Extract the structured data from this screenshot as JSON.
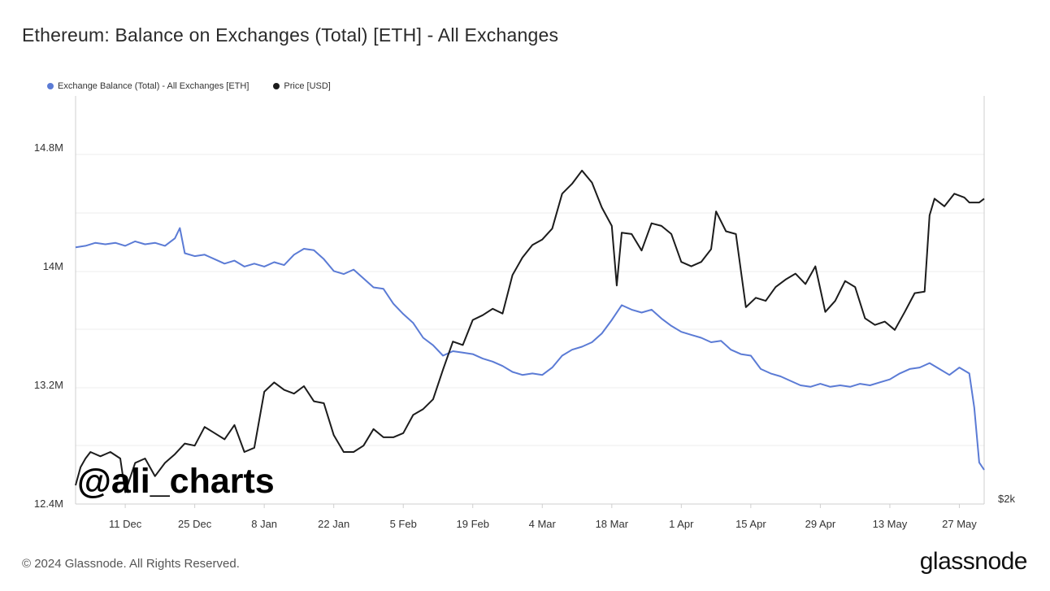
{
  "title": "Ethereum: Balance on Exchanges (Total) [ETH] - All Exchanges",
  "footer": "© 2024 Glassnode. All Rights Reserved.",
  "brand": "glassnode",
  "watermark": "@ali_charts",
  "colors": {
    "balance": "#5b7bd5",
    "price": "#1c1c1c",
    "grid": "#ececec",
    "axis": "#cfcfcf"
  },
  "chart_data": {
    "type": "line",
    "title": "Ethereum: Balance on Exchanges (Total) [ETH] - All Exchanges",
    "legend_position": "top-left",
    "grid": true,
    "x_tick_labels": [
      "11 Dec",
      "25 Dec",
      "8 Jan",
      "22 Jan",
      "5 Feb",
      "19 Feb",
      "4 Mar",
      "18 Mar",
      "1 Apr",
      "15 Apr",
      "29 Apr",
      "13 May",
      "27 May"
    ],
    "y_left": {
      "ticks": [
        "12.4M",
        "13.2M",
        "14M",
        "14.8M"
      ],
      "ylim": [
        12.4,
        15.15
      ],
      "unit": "M ETH"
    },
    "y_right": {
      "ticks": [
        "$2k"
      ]
    },
    "x_range": [
      "2023-12-01",
      "2024-06-01"
    ],
    "series": [
      {
        "name": "Exchange Balance (Total) - All Exchanges [ETH]",
        "axis": "left",
        "points": [
          [
            "2023-12-01",
            14.13
          ],
          [
            "2023-12-03",
            14.14
          ],
          [
            "2023-12-05",
            14.16
          ],
          [
            "2023-12-07",
            14.15
          ],
          [
            "2023-12-09",
            14.16
          ],
          [
            "2023-12-11",
            14.14
          ],
          [
            "2023-12-13",
            14.17
          ],
          [
            "2023-12-15",
            14.15
          ],
          [
            "2023-12-17",
            14.16
          ],
          [
            "2023-12-19",
            14.14
          ],
          [
            "2023-12-21",
            14.19
          ],
          [
            "2023-12-22",
            14.26
          ],
          [
            "2023-12-23",
            14.09
          ],
          [
            "2023-12-25",
            14.07
          ],
          [
            "2023-12-27",
            14.08
          ],
          [
            "2023-12-29",
            14.05
          ],
          [
            "2023-12-31",
            14.02
          ],
          [
            "2024-01-02",
            14.04
          ],
          [
            "2024-01-04",
            14.0
          ],
          [
            "2024-01-06",
            14.02
          ],
          [
            "2024-01-08",
            14.0
          ],
          [
            "2024-01-10",
            14.03
          ],
          [
            "2024-01-12",
            14.01
          ],
          [
            "2024-01-14",
            14.08
          ],
          [
            "2024-01-16",
            14.12
          ],
          [
            "2024-01-18",
            14.11
          ],
          [
            "2024-01-20",
            14.05
          ],
          [
            "2024-01-22",
            13.97
          ],
          [
            "2024-01-24",
            13.95
          ],
          [
            "2024-01-26",
            13.98
          ],
          [
            "2024-01-28",
            13.92
          ],
          [
            "2024-01-30",
            13.86
          ],
          [
            "2024-02-01",
            13.85
          ],
          [
            "2024-02-03",
            13.75
          ],
          [
            "2024-02-05",
            13.68
          ],
          [
            "2024-02-07",
            13.62
          ],
          [
            "2024-02-09",
            13.52
          ],
          [
            "2024-02-11",
            13.47
          ],
          [
            "2024-02-13",
            13.4
          ],
          [
            "2024-02-15",
            13.43
          ],
          [
            "2024-02-17",
            13.42
          ],
          [
            "2024-02-19",
            13.41
          ],
          [
            "2024-02-21",
            13.38
          ],
          [
            "2024-02-23",
            13.36
          ],
          [
            "2024-02-25",
            13.33
          ],
          [
            "2024-02-27",
            13.29
          ],
          [
            "2024-02-29",
            13.27
          ],
          [
            "2024-03-02",
            13.28
          ],
          [
            "2024-03-04",
            13.27
          ],
          [
            "2024-03-06",
            13.32
          ],
          [
            "2024-03-08",
            13.4
          ],
          [
            "2024-03-10",
            13.44
          ],
          [
            "2024-03-12",
            13.46
          ],
          [
            "2024-03-14",
            13.49
          ],
          [
            "2024-03-16",
            13.55
          ],
          [
            "2024-03-18",
            13.64
          ],
          [
            "2024-03-20",
            13.74
          ],
          [
            "2024-03-22",
            13.71
          ],
          [
            "2024-03-24",
            13.69
          ],
          [
            "2024-03-26",
            13.71
          ],
          [
            "2024-03-28",
            13.65
          ],
          [
            "2024-03-30",
            13.6
          ],
          [
            "2024-04-01",
            13.56
          ],
          [
            "2024-04-03",
            13.54
          ],
          [
            "2024-04-05",
            13.52
          ],
          [
            "2024-04-07",
            13.49
          ],
          [
            "2024-04-09",
            13.5
          ],
          [
            "2024-04-11",
            13.44
          ],
          [
            "2024-04-13",
            13.41
          ],
          [
            "2024-04-15",
            13.4
          ],
          [
            "2024-04-17",
            13.31
          ],
          [
            "2024-04-19",
            13.28
          ],
          [
            "2024-04-21",
            13.26
          ],
          [
            "2024-04-23",
            13.23
          ],
          [
            "2024-04-25",
            13.2
          ],
          [
            "2024-04-27",
            13.19
          ],
          [
            "2024-04-29",
            13.21
          ],
          [
            "2024-05-01",
            13.19
          ],
          [
            "2024-05-03",
            13.2
          ],
          [
            "2024-05-05",
            13.19
          ],
          [
            "2024-05-07",
            13.21
          ],
          [
            "2024-05-09",
            13.2
          ],
          [
            "2024-05-11",
            13.22
          ],
          [
            "2024-05-13",
            13.24
          ],
          [
            "2024-05-15",
            13.28
          ],
          [
            "2024-05-17",
            13.31
          ],
          [
            "2024-05-19",
            13.32
          ],
          [
            "2024-05-21",
            13.35
          ],
          [
            "2024-05-23",
            13.31
          ],
          [
            "2024-05-25",
            13.27
          ],
          [
            "2024-05-27",
            13.32
          ],
          [
            "2024-05-29",
            13.28
          ],
          [
            "2024-05-30",
            13.05
          ],
          [
            "2024-05-31",
            12.68
          ],
          [
            "2024-06-01",
            12.63
          ]
        ]
      },
      {
        "name": "Price [USD]",
        "axis": "right",
        "points": [
          [
            "2023-12-01",
            2080
          ],
          [
            "2023-12-02",
            2160
          ],
          [
            "2023-12-03",
            2200
          ],
          [
            "2023-12-04",
            2230
          ],
          [
            "2023-12-06",
            2210
          ],
          [
            "2023-12-08",
            2230
          ],
          [
            "2023-12-10",
            2200
          ],
          [
            "2023-12-11",
            2050
          ],
          [
            "2023-12-13",
            2180
          ],
          [
            "2023-12-15",
            2200
          ],
          [
            "2023-12-17",
            2120
          ],
          [
            "2023-12-19",
            2180
          ],
          [
            "2023-12-21",
            2220
          ],
          [
            "2023-12-23",
            2270
          ],
          [
            "2023-12-25",
            2260
          ],
          [
            "2023-12-27",
            2350
          ],
          [
            "2023-12-29",
            2320
          ],
          [
            "2023-12-31",
            2290
          ],
          [
            "2024-01-02",
            2360
          ],
          [
            "2024-01-04",
            2230
          ],
          [
            "2024-01-06",
            2250
          ],
          [
            "2024-01-08",
            2530
          ],
          [
            "2024-01-10",
            2580
          ],
          [
            "2024-01-12",
            2540
          ],
          [
            "2024-01-14",
            2520
          ],
          [
            "2024-01-16",
            2560
          ],
          [
            "2024-01-18",
            2480
          ],
          [
            "2024-01-20",
            2470
          ],
          [
            "2024-01-22",
            2310
          ],
          [
            "2024-01-24",
            2230
          ],
          [
            "2024-01-26",
            2230
          ],
          [
            "2024-01-28",
            2260
          ],
          [
            "2024-01-30",
            2340
          ],
          [
            "2024-02-01",
            2300
          ],
          [
            "2024-02-03",
            2300
          ],
          [
            "2024-02-05",
            2320
          ],
          [
            "2024-02-07",
            2410
          ],
          [
            "2024-02-09",
            2440
          ],
          [
            "2024-02-11",
            2490
          ],
          [
            "2024-02-13",
            2650
          ],
          [
            "2024-02-15",
            2810
          ],
          [
            "2024-02-17",
            2790
          ],
          [
            "2024-02-19",
            2940
          ],
          [
            "2024-02-21",
            2970
          ],
          [
            "2024-02-23",
            3010
          ],
          [
            "2024-02-25",
            2980
          ],
          [
            "2024-02-27",
            3230
          ],
          [
            "2024-02-29",
            3350
          ],
          [
            "2024-03-02",
            3440
          ],
          [
            "2024-03-04",
            3480
          ],
          [
            "2024-03-06",
            3560
          ],
          [
            "2024-03-08",
            3830
          ],
          [
            "2024-03-10",
            3910
          ],
          [
            "2024-03-12",
            4020
          ],
          [
            "2024-03-14",
            3920
          ],
          [
            "2024-03-16",
            3720
          ],
          [
            "2024-03-18",
            3580
          ],
          [
            "2024-03-19",
            3160
          ],
          [
            "2024-03-20",
            3530
          ],
          [
            "2024-03-22",
            3520
          ],
          [
            "2024-03-24",
            3400
          ],
          [
            "2024-03-26",
            3600
          ],
          [
            "2024-03-28",
            3580
          ],
          [
            "2024-03-30",
            3520
          ],
          [
            "2024-04-01",
            3320
          ],
          [
            "2024-04-03",
            3290
          ],
          [
            "2024-04-05",
            3320
          ],
          [
            "2024-04-07",
            3410
          ],
          [
            "2024-04-08",
            3690
          ],
          [
            "2024-04-10",
            3540
          ],
          [
            "2024-04-12",
            3520
          ],
          [
            "2024-04-14",
            3020
          ],
          [
            "2024-04-16",
            3080
          ],
          [
            "2024-04-18",
            3060
          ],
          [
            "2024-04-20",
            3150
          ],
          [
            "2024-04-22",
            3200
          ],
          [
            "2024-04-24",
            3240
          ],
          [
            "2024-04-26",
            3170
          ],
          [
            "2024-04-28",
            3290
          ],
          [
            "2024-04-30",
            2990
          ],
          [
            "2024-05-02",
            3060
          ],
          [
            "2024-05-04",
            3190
          ],
          [
            "2024-05-06",
            3150
          ],
          [
            "2024-05-08",
            2950
          ],
          [
            "2024-05-10",
            2910
          ],
          [
            "2024-05-12",
            2930
          ],
          [
            "2024-05-14",
            2880
          ],
          [
            "2024-05-16",
            2990
          ],
          [
            "2024-05-18",
            3110
          ],
          [
            "2024-05-20",
            3120
          ],
          [
            "2024-05-21",
            3660
          ],
          [
            "2024-05-22",
            3790
          ],
          [
            "2024-05-24",
            3730
          ],
          [
            "2024-05-26",
            3830
          ],
          [
            "2024-05-28",
            3800
          ],
          [
            "2024-05-29",
            3760
          ],
          [
            "2024-05-31",
            3760
          ],
          [
            "2024-06-01",
            3790
          ]
        ]
      }
    ]
  }
}
